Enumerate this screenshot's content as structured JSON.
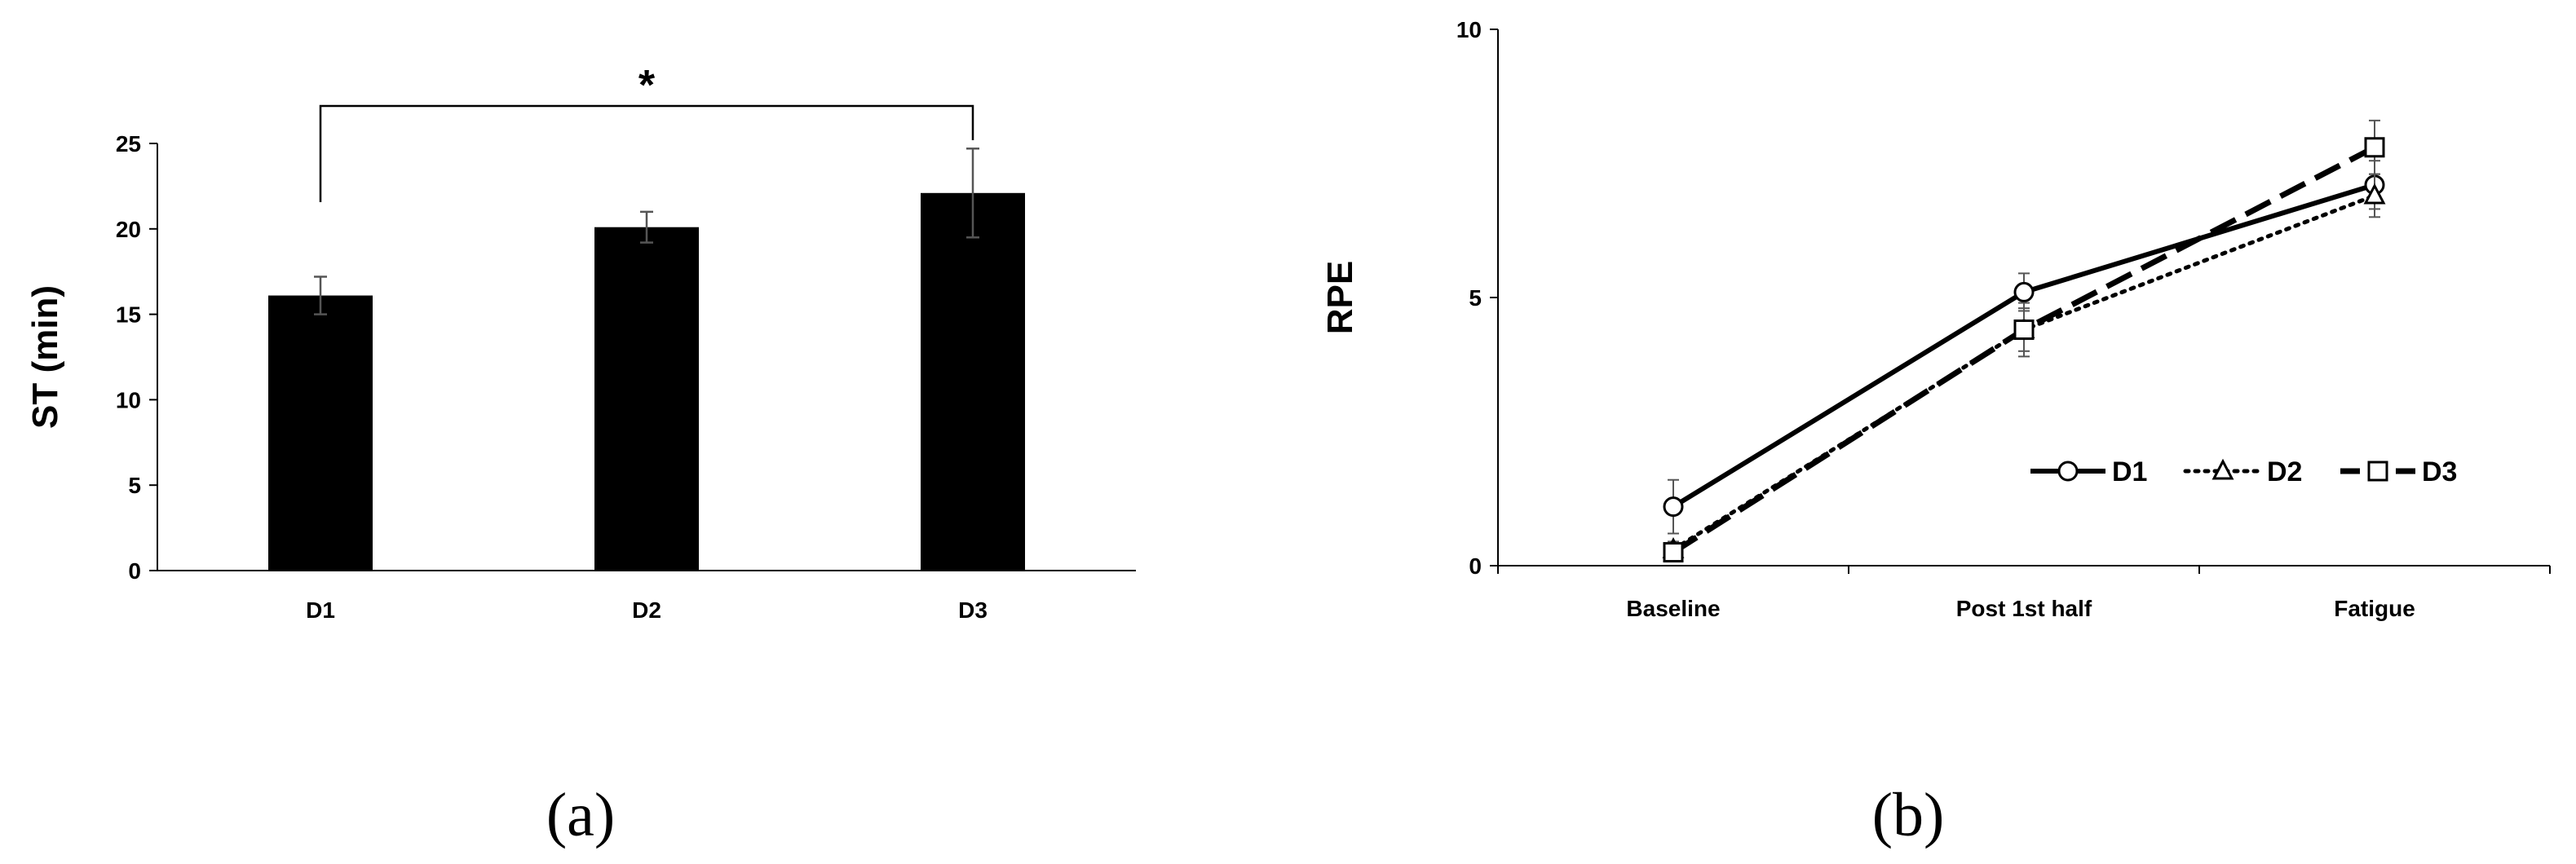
{
  "chart_data": [
    {
      "type": "bar",
      "panel_label": "(a)",
      "categories": [
        "D1",
        "D2",
        "D3"
      ],
      "values": [
        16.1,
        20.1,
        22.1
      ],
      "errors": [
        1.1,
        0.9,
        2.6
      ],
      "ylabel": "ST (min)",
      "ylim": [
        0,
        25
      ],
      "yticks": [
        "0",
        "5",
        "10",
        "15",
        "20",
        "25"
      ],
      "bar_color": "#000000",
      "grid": false,
      "significance": {
        "from": "D1",
        "to": "D3",
        "label": "*"
      }
    },
    {
      "type": "line",
      "panel_label": "(b)",
      "categories": [
        "Baseline",
        "Post 1st half",
        "Fatigue"
      ],
      "ylabel": "RPE",
      "ylim": [
        0,
        10
      ],
      "yticks": [
        "0",
        "5",
        "10"
      ],
      "grid": false,
      "legend_position": "right",
      "series": [
        {
          "name": "D1",
          "values": [
            1.1,
            5.1,
            7.1
          ],
          "errors": [
            0.5,
            0.35,
            0.45
          ],
          "marker": "circle",
          "dash": "solid"
        },
        {
          "name": "D2",
          "values": [
            0.3,
            4.4,
            6.9
          ],
          "errors": [
            0.15,
            0.4,
            0.4
          ],
          "marker": "triangle",
          "dash": "dotted"
        },
        {
          "name": "D3",
          "values": [
            0.25,
            4.4,
            7.8
          ],
          "errors": [
            0.15,
            0.5,
            0.5
          ],
          "marker": "square",
          "dash": "dashed"
        }
      ]
    }
  ]
}
